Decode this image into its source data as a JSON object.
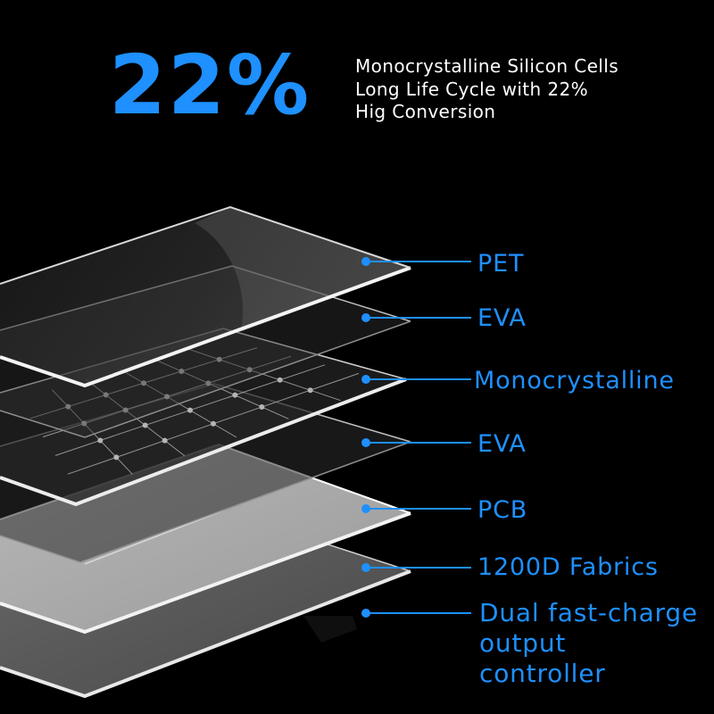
{
  "headline": {
    "value": "22%",
    "color": "#1E90FF"
  },
  "description": {
    "lines": [
      "Monocrystalline Silicon Cells",
      "Long Life Cycle with 22%",
      "Hig Conversion"
    ]
  },
  "layers": [
    {
      "id": "pet",
      "label": "PET"
    },
    {
      "id": "eva-top",
      "label": "EVA"
    },
    {
      "id": "monocrystalline",
      "label": "Monocrystalline"
    },
    {
      "id": "eva-bottom",
      "label": "EVA"
    },
    {
      "id": "pcb",
      "label": "PCB"
    },
    {
      "id": "fabrics",
      "label": "1200D Fabrics"
    }
  ],
  "controller_label": {
    "lines": [
      "Dual fast-charge",
      "output",
      "controller"
    ]
  },
  "colors": {
    "accent": "#1E90FF",
    "background": "#000000",
    "text": "#FFFFFF"
  }
}
